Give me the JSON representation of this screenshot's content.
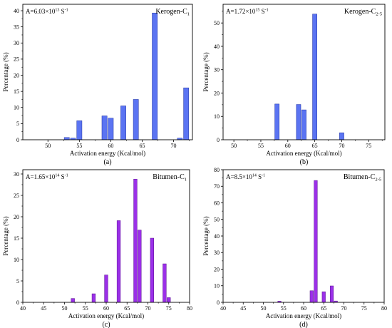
{
  "chart_data": [
    {
      "type": "bar",
      "panel": "(a)",
      "sample": {
        "base": "Kerogen-C",
        "sub": "1"
      },
      "annotation": {
        "base": "A=6.03×10",
        "exp": "13",
        "unit": " S",
        "unit_exp": "-1"
      },
      "xlabel": "Activation energy (Kcal/mol)",
      "ylabel": "Percentage (%)",
      "xlim": [
        46,
        73
      ],
      "ylim": [
        0,
        42
      ],
      "xticks": [
        50,
        55,
        60,
        65,
        70
      ],
      "yticks": [
        0,
        5,
        10,
        15,
        20,
        25,
        30,
        35,
        40
      ],
      "color": "#5b74f2",
      "stroke": "#1d2f9e",
      "x": [
        53,
        54,
        55,
        59,
        60,
        62,
        64,
        67,
        71,
        72
      ],
      "values": [
        0.7,
        0.5,
        5.9,
        7.4,
        6.7,
        10.5,
        12.5,
        39.3,
        0.5,
        16.1
      ]
    },
    {
      "type": "bar",
      "panel": "(b)",
      "sample": {
        "base": "Kerogen-C",
        "sub": "2-5"
      },
      "annotation": {
        "base": "A=1.72×10",
        "exp": "15",
        "unit": " S",
        "unit_exp": "-1"
      },
      "xlabel": "Activation energy (Kcal/mol)",
      "ylabel": "Percentage (%)",
      "xlim": [
        48,
        78
      ],
      "ylim": [
        0,
        58
      ],
      "xticks": [
        50,
        55,
        60,
        65,
        70,
        75
      ],
      "yticks": [
        0,
        10,
        20,
        30,
        40,
        50
      ],
      "color": "#5b74f2",
      "stroke": "#1d2f9e",
      "x": [
        58,
        62,
        63,
        65,
        70
      ],
      "values": [
        15.3,
        15.1,
        12.8,
        53.8,
        3.0
      ]
    },
    {
      "type": "bar",
      "panel": "(c)",
      "sample": {
        "base": "Bitumen-C",
        "sub": "1"
      },
      "annotation": {
        "base": "A=1.65×10",
        "exp": "14",
        "unit": " S",
        "unit_exp": "-1"
      },
      "xlabel": "Activation energy (Kcal/mol)",
      "ylabel": "Percentage (%)",
      "xlim": [
        40,
        80
      ],
      "ylim": [
        0,
        31
      ],
      "xticks": [
        40,
        45,
        50,
        55,
        60,
        65,
        70,
        75,
        80
      ],
      "yticks": [
        0,
        5,
        10,
        15,
        20,
        25,
        30
      ],
      "color": "#9b30e8",
      "stroke": "#5a1591",
      "x": [
        52,
        57,
        60,
        63,
        67,
        68,
        71,
        74,
        75
      ],
      "values": [
        0.9,
        2.0,
        6.4,
        19.1,
        28.8,
        16.9,
        15.0,
        9.0,
        1.1
      ]
    },
    {
      "type": "bar",
      "panel": "(d)",
      "sample": {
        "base": "Bitumen-C",
        "sub": "2-5"
      },
      "annotation": {
        "base": "A=8.5×10",
        "exp": "14",
        "unit": " S",
        "unit_exp": "-1"
      },
      "xlabel": "Activation energy (Kcal/mol)",
      "ylabel": "Percentage (%)",
      "xlim": [
        40,
        80
      ],
      "ylim": [
        0,
        80
      ],
      "xticks": [
        40,
        45,
        50,
        55,
        60,
        65,
        70,
        75,
        80
      ],
      "yticks": [
        0,
        10,
        20,
        30,
        40,
        50,
        60,
        70,
        80
      ],
      "color": "#9b30e8",
      "stroke": "#5a1591",
      "x": [
        54,
        62,
        63,
        65,
        67,
        68
      ],
      "values": [
        0.7,
        7.0,
        73.5,
        6.4,
        9.9,
        0.8
      ]
    }
  ]
}
